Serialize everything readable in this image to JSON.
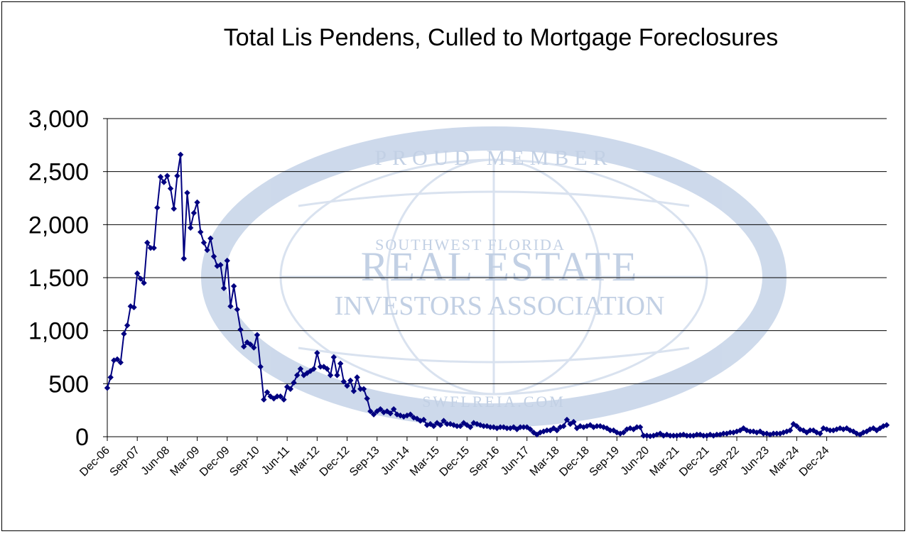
{
  "chart_data": {
    "type": "line",
    "title": "Total Lis Pendens, Culled to Mortgage Foreclosures",
    "xlabel": "",
    "ylabel": "",
    "ylim": [
      0,
      3000
    ],
    "yticks": [
      0,
      500,
      1000,
      1500,
      2000,
      2500,
      3000
    ],
    "ytick_labels": [
      "0",
      "500",
      "1,000",
      "1,500",
      "2,000",
      "2,500",
      "3,000"
    ],
    "x_start": "Dec-06",
    "x_tick_step_months": 9,
    "x_tick_labels": [
      "Dec-06",
      "Sep-07",
      "Jun-08",
      "Mar-09",
      "Dec-09",
      "Sep-10",
      "Jun-11",
      "Mar-12",
      "Dec-12",
      "Sep-13",
      "Jun-14",
      "Mar-15",
      "Dec-15",
      "Sep-16",
      "Jun-17",
      "Mar-18",
      "Dec-18",
      "Sep-19",
      "Jun-20",
      "Mar-21",
      "Dec-21",
      "Sep-22",
      "Jun-23",
      "Mar-24",
      "Dec-24"
    ],
    "grid": true,
    "marker": "diamond",
    "color": "#000080",
    "series": [
      {
        "values": [
          460,
          560,
          720,
          730,
          700,
          970,
          1050,
          1230,
          1220,
          1540,
          1490,
          1450,
          1830,
          1780,
          1780,
          2160,
          2450,
          2400,
          2460,
          2340,
          2150,
          2460,
          2660,
          1680,
          2300,
          1970,
          2110,
          2210,
          1930,
          1830,
          1760,
          1870,
          1700,
          1610,
          1620,
          1400,
          1660,
          1230,
          1420,
          1200,
          1010,
          850,
          890,
          870,
          840,
          960,
          660,
          350,
          420,
          380,
          360,
          380,
          380,
          350,
          470,
          450,
          510,
          580,
          640,
          580,
          600,
          620,
          640,
          790,
          660,
          660,
          640,
          580,
          750,
          580,
          690,
          520,
          480,
          530,
          430,
          560,
          450,
          450,
          360,
          240,
          210,
          240,
          260,
          230,
          240,
          220,
          260,
          210,
          200,
          190,
          200,
          210,
          180,
          170,
          150,
          160,
          110,
          120,
          100,
          130,
          110,
          150,
          120,
          120,
          110,
          100,
          100,
          130,
          110,
          90,
          130,
          120,
          110,
          100,
          100,
          90,
          90,
          80,
          90,
          90,
          80,
          80,
          90,
          70,
          90,
          90,
          90,
          70,
          40,
          20,
          40,
          50,
          60,
          60,
          80,
          60,
          90,
          100,
          160,
          120,
          140,
          80,
          100,
          90,
          100,
          110,
          90,
          100,
          100,
          90,
          80,
          60,
          60,
          40,
          30,
          40,
          70,
          80,
          70,
          90,
          90,
          10,
          10,
          5,
          10,
          20,
          30,
          10,
          20,
          10,
          10,
          10,
          15,
          20,
          10,
          10,
          10,
          20,
          20,
          10,
          10,
          20,
          10,
          20,
          20,
          30,
          30,
          40,
          40,
          50,
          60,
          80,
          60,
          50,
          50,
          40,
          50,
          30,
          30,
          20,
          30,
          30,
          30,
          40,
          50,
          60,
          120,
          100,
          70,
          60,
          40,
          60,
          60,
          40,
          30,
          80,
          70,
          60,
          60,
          70,
          80,
          70,
          80,
          60,
          50,
          30,
          20,
          40,
          50,
          70,
          80,
          60,
          80,
          100,
          110
        ]
      }
    ]
  },
  "watermark": {
    "top_text": "PROUD MEMBER",
    "small_text": "SOUTHWEST FLORIDA",
    "big_text": "REAL ESTATE",
    "mid_text": "INVESTORS ASSOCIATION",
    "bottom_text": "SWFLREIA.COM",
    "color": "#b8c8e0"
  }
}
